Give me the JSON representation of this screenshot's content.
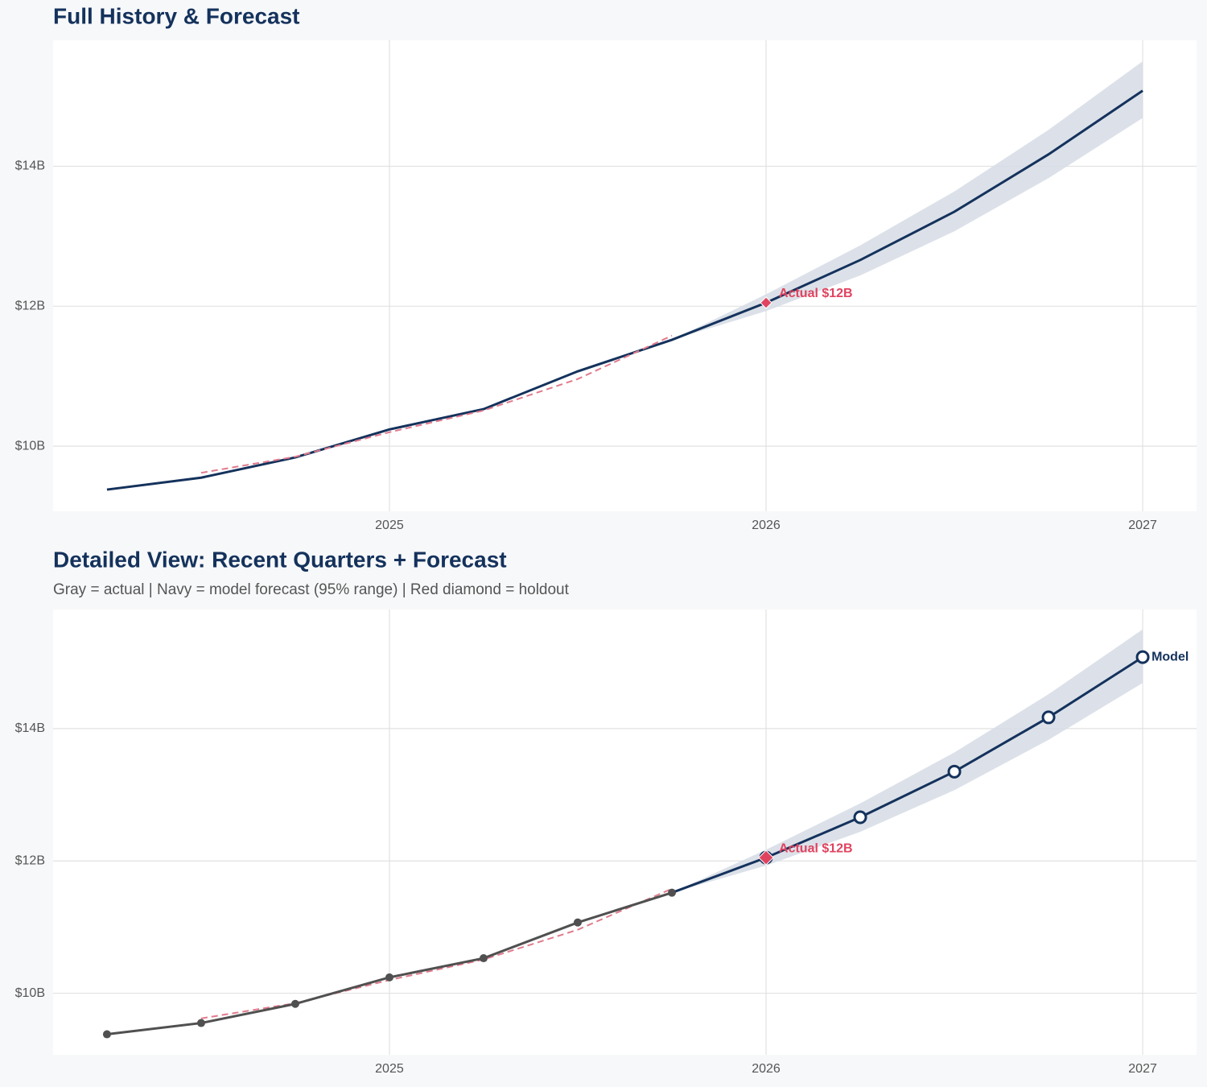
{
  "chart_data": [
    {
      "type": "line",
      "title": "Full History & Forecast",
      "x": [
        2024.25,
        2024.5,
        2024.75,
        2025.0,
        2025.25,
        2025.5,
        2025.75,
        2026.0,
        2026.25,
        2026.5,
        2026.75,
        2027.0
      ],
      "xlim": [
        2024.107,
        2027.143
      ],
      "xticks": [
        2025,
        2026,
        2027
      ],
      "ylim": [
        9.07,
        15.8
      ],
      "yticks": [
        {
          "value": 10,
          "label": "$10B"
        },
        {
          "value": 12,
          "label": "$12B"
        },
        {
          "value": 14,
          "label": "$14B"
        }
      ],
      "grid": true,
      "band": {
        "color": "#d6dce5",
        "upper": [
          null,
          null,
          null,
          null,
          null,
          null,
          11.52,
          12.17,
          12.87,
          13.64,
          14.52,
          15.5
        ],
        "lower": [
          null,
          null,
          null,
          null,
          null,
          null,
          11.52,
          11.93,
          12.44,
          13.07,
          13.83,
          14.69
        ]
      },
      "series": [
        {
          "color": "#14325c",
          "dash": false,
          "marker": "none",
          "values": [
            9.38,
            9.55,
            9.84,
            10.24,
            10.53,
            11.07,
            11.52,
            12.05,
            12.66,
            13.35,
            14.17,
            15.08
          ]
        },
        {
          "color": "#e07a8c",
          "dash": true,
          "marker": "none",
          "values": [
            null,
            9.62,
            9.85,
            10.2,
            10.51,
            10.96,
            11.58,
            null,
            null,
            null,
            null,
            null
          ]
        }
      ],
      "annotations": [
        {
          "text": "Actual $12B",
          "x": 2026,
          "y": 12.05,
          "color": "#e0435f",
          "marker": "diamond"
        }
      ]
    },
    {
      "type": "line",
      "title": "Detailed View: Recent Quarters + Forecast",
      "subtitle": "Gray = actual  |  Navy = model forecast (95% range)  |  Red diamond = holdout",
      "x": [
        2024.25,
        2024.5,
        2024.75,
        2025.0,
        2025.25,
        2025.5,
        2025.75,
        2026.0,
        2026.25,
        2026.5,
        2026.75,
        2027.0
      ],
      "xlim": [
        2024.107,
        2027.143
      ],
      "xticks": [
        2025,
        2026,
        2027
      ],
      "ylim": [
        9.07,
        15.8
      ],
      "yticks": [
        {
          "value": 10,
          "label": "$10B"
        },
        {
          "value": 12,
          "label": "$12B"
        },
        {
          "value": 14,
          "label": "$14B"
        }
      ],
      "grid": true,
      "band": {
        "color": "#d6dce5",
        "upper": [
          null,
          null,
          null,
          null,
          null,
          null,
          11.52,
          12.17,
          12.87,
          13.64,
          14.52,
          15.5
        ],
        "lower": [
          null,
          null,
          null,
          null,
          null,
          null,
          11.52,
          11.93,
          12.44,
          13.07,
          13.83,
          14.69
        ]
      },
      "series": [
        {
          "color": "#e07a8c",
          "dash": true,
          "marker": "none",
          "values": [
            null,
            9.62,
            9.85,
            10.2,
            10.51,
            10.96,
            11.58,
            null,
            null,
            null,
            null,
            null
          ]
        },
        {
          "color": "#14325c",
          "dash": false,
          "marker": "open",
          "values": [
            null,
            null,
            null,
            null,
            null,
            null,
            null,
            12.05,
            12.66,
            13.35,
            14.17,
            15.08
          ],
          "connect_from": 11.52,
          "end_label": "Model"
        },
        {
          "color": "#505050",
          "dash": false,
          "marker": "dot",
          "values": [
            9.38,
            9.55,
            9.84,
            10.24,
            10.53,
            11.07,
            11.52,
            null,
            null,
            null,
            null,
            null
          ]
        }
      ],
      "annotations": [
        {
          "text": "Actual $12B",
          "x": 2026,
          "y": 12.05,
          "color": "#e0435f",
          "marker": "diamond"
        }
      ]
    }
  ]
}
